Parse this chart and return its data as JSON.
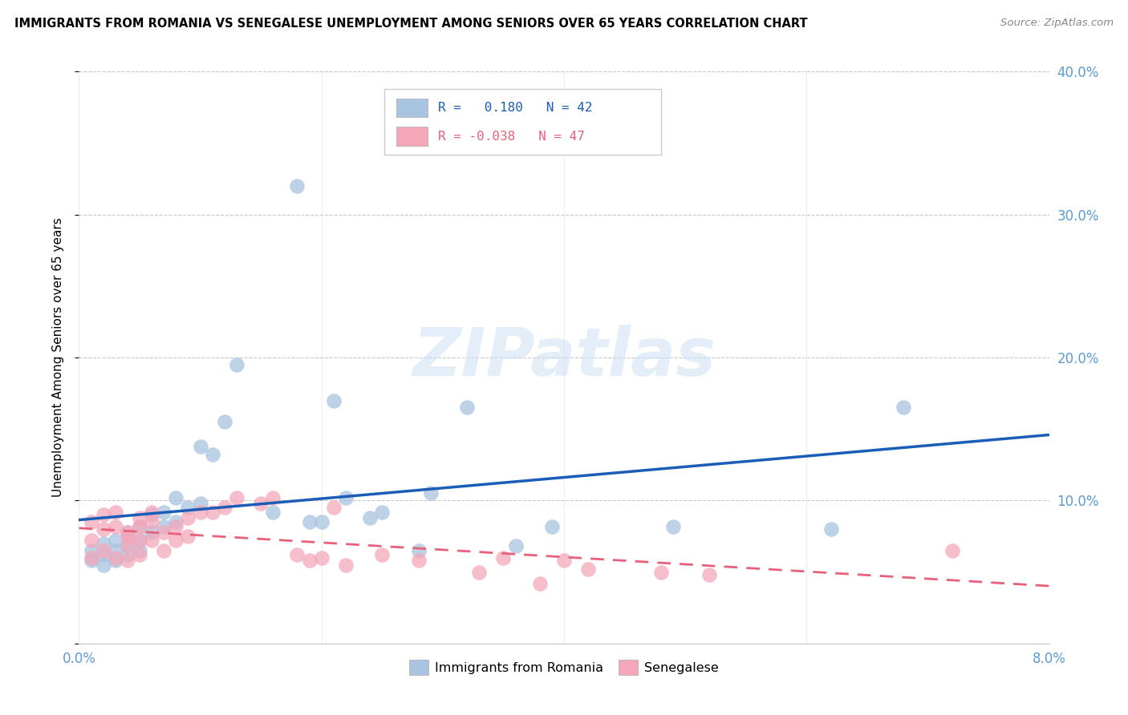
{
  "title": "IMMIGRANTS FROM ROMANIA VS SENEGALESE UNEMPLOYMENT AMONG SENIORS OVER 65 YEARS CORRELATION CHART",
  "source": "Source: ZipAtlas.com",
  "ylabel": "Unemployment Among Seniors over 65 years",
  "legend_label1": "Immigrants from Romania",
  "legend_label2": "Senegalese",
  "r1": 0.18,
  "n1": 42,
  "r2": -0.038,
  "n2": 47,
  "color_blue": "#a8c4e0",
  "color_pink": "#f4a7b9",
  "line_blue": "#1a5eb8",
  "line_pink": "#e8607a",
  "xlim": [
    0.0,
    0.08
  ],
  "ylim": [
    0.0,
    0.4
  ],
  "romania_x": [
    0.001,
    0.001,
    0.002,
    0.002,
    0.002,
    0.003,
    0.003,
    0.003,
    0.004,
    0.004,
    0.004,
    0.005,
    0.005,
    0.005,
    0.006,
    0.006,
    0.007,
    0.007,
    0.008,
    0.008,
    0.009,
    0.01,
    0.01,
    0.011,
    0.012,
    0.013,
    0.016,
    0.018,
    0.019,
    0.02,
    0.021,
    0.022,
    0.024,
    0.025,
    0.028,
    0.029,
    0.032,
    0.036,
    0.039,
    0.049,
    0.062,
    0.068
  ],
  "romania_y": [
    0.065,
    0.058,
    0.07,
    0.055,
    0.062,
    0.072,
    0.065,
    0.058,
    0.078,
    0.068,
    0.062,
    0.082,
    0.072,
    0.065,
    0.09,
    0.078,
    0.092,
    0.082,
    0.102,
    0.085,
    0.095,
    0.138,
    0.098,
    0.132,
    0.155,
    0.195,
    0.092,
    0.32,
    0.085,
    0.085,
    0.17,
    0.102,
    0.088,
    0.092,
    0.065,
    0.105,
    0.165,
    0.068,
    0.082,
    0.082,
    0.08,
    0.165
  ],
  "senegal_x": [
    0.001,
    0.001,
    0.001,
    0.002,
    0.002,
    0.002,
    0.003,
    0.003,
    0.003,
    0.004,
    0.004,
    0.004,
    0.004,
    0.005,
    0.005,
    0.005,
    0.005,
    0.006,
    0.006,
    0.006,
    0.007,
    0.007,
    0.008,
    0.008,
    0.009,
    0.009,
    0.01,
    0.011,
    0.012,
    0.013,
    0.015,
    0.016,
    0.018,
    0.019,
    0.02,
    0.021,
    0.022,
    0.025,
    0.028,
    0.033,
    0.035,
    0.038,
    0.04,
    0.042,
    0.048,
    0.052,
    0.072
  ],
  "senegal_y": [
    0.085,
    0.072,
    0.06,
    0.09,
    0.08,
    0.065,
    0.092,
    0.082,
    0.06,
    0.078,
    0.068,
    0.058,
    0.075,
    0.088,
    0.082,
    0.072,
    0.062,
    0.092,
    0.085,
    0.072,
    0.078,
    0.065,
    0.082,
    0.072,
    0.088,
    0.075,
    0.092,
    0.092,
    0.095,
    0.102,
    0.098,
    0.102,
    0.062,
    0.058,
    0.06,
    0.095,
    0.055,
    0.062,
    0.058,
    0.05,
    0.06,
    0.042,
    0.058,
    0.052,
    0.05,
    0.048,
    0.065
  ]
}
